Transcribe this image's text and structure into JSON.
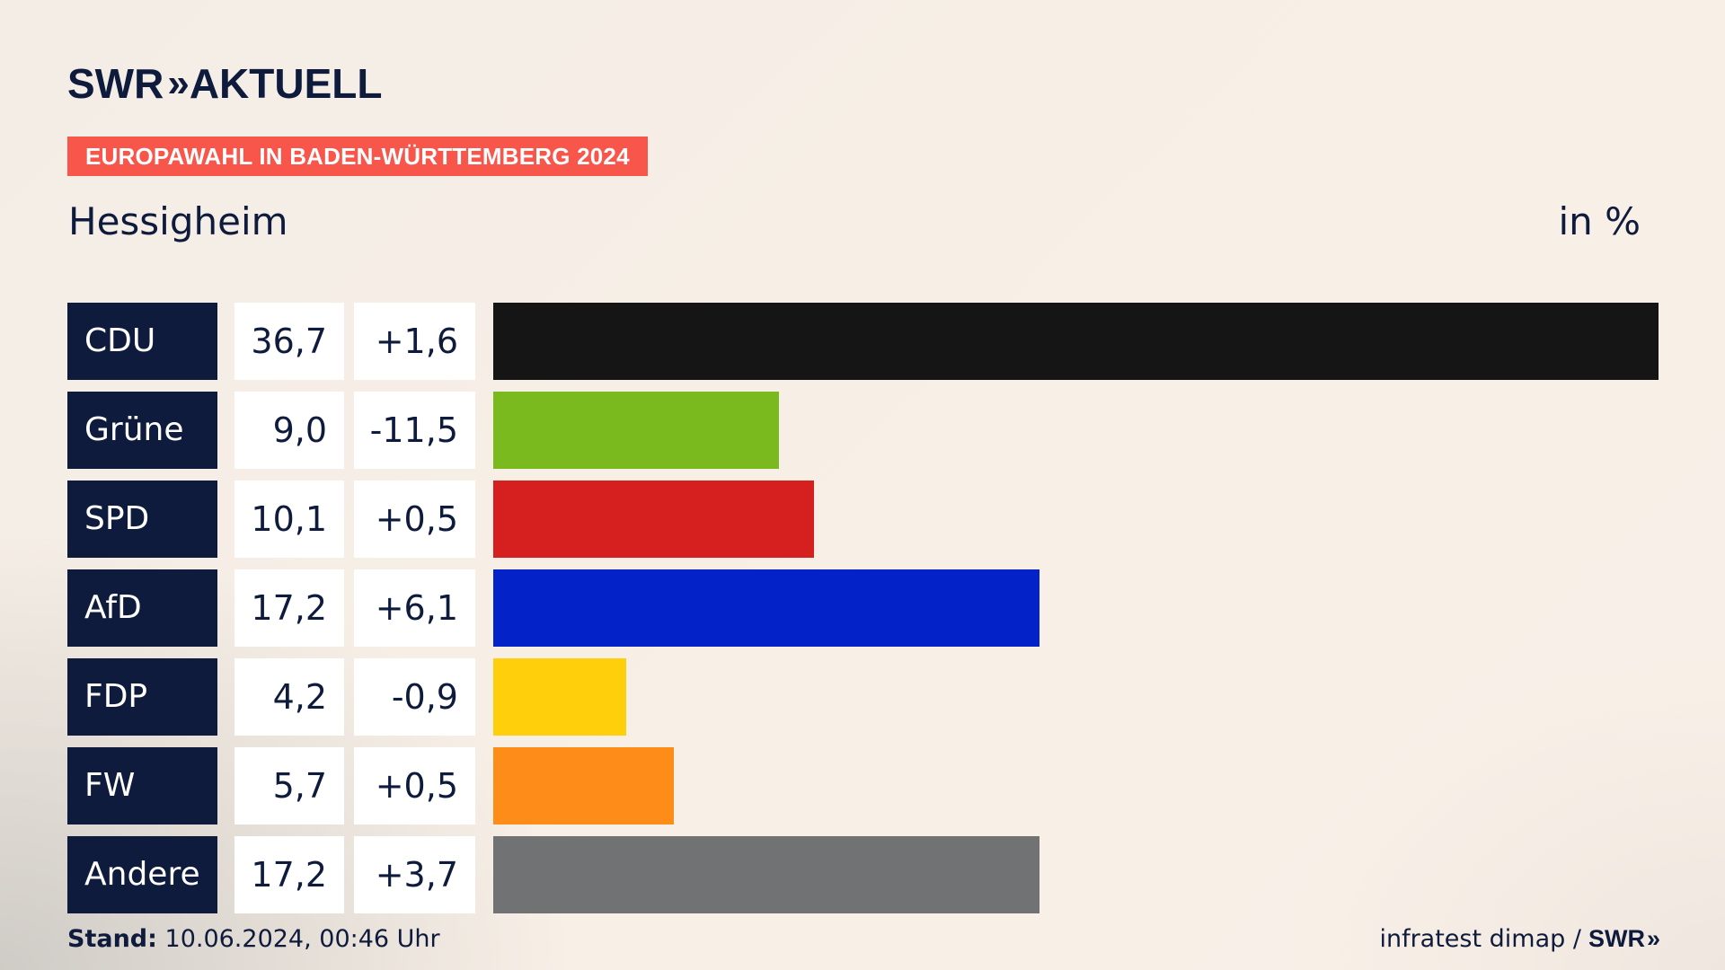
{
  "brand": {
    "logo_text": "SWR",
    "logo_chevrons": "»",
    "logo_suffix": "AKTUELL"
  },
  "tag": {
    "label": "EUROPAWAHL IN BADEN-WÜRTTEMBERG 2024",
    "color": "#f8564b"
  },
  "region": "Hessigheim",
  "unit": "in %",
  "chart_data": {
    "type": "bar",
    "orientation": "horizontal",
    "categories": [
      "CDU",
      "Grüne",
      "SPD",
      "AfD",
      "FDP",
      "FW",
      "Andere"
    ],
    "values": [
      36.7,
      9.0,
      10.1,
      17.2,
      4.2,
      5.7,
      17.2
    ],
    "value_labels": [
      "36,7",
      "9,0",
      "10,1",
      "17,2",
      "4,2",
      "5,7",
      "17,2"
    ],
    "diff_labels": [
      "+1,6",
      "-11,5",
      "+0,5",
      "+6,1",
      "-0,9",
      "+0,5",
      "+3,7"
    ],
    "colors": [
      "#151515",
      "#7aba1e",
      "#d61f1f",
      "#0323c8",
      "#fecf0a",
      "#fd8d18",
      "#717273"
    ],
    "grid": false
  },
  "footer": {
    "stand_label": "Stand:",
    "stand_value": "10.06.2024, 00:46 Uhr",
    "source": "infratest dimap /",
    "swr": "SWR",
    "swr_chevrons": "»"
  }
}
